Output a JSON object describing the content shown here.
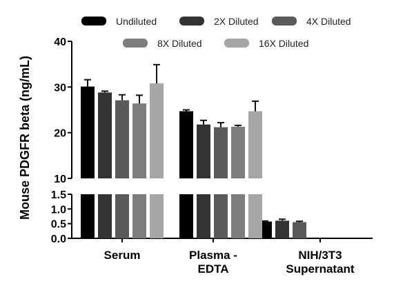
{
  "chart_data": {
    "type": "bar",
    "ylabel": "Mouse PDGFR beta (ng/mL)",
    "xlabel": "",
    "categories": [
      "Serum",
      "Plasma - EDTA",
      "NIH/3T3 Supernatant"
    ],
    "category_lines": [
      [
        "Serum"
      ],
      [
        "Plasma -",
        "EDTA"
      ],
      [
        "NIH/3T3",
        "Supernatant"
      ]
    ],
    "y_axis": {
      "broken": true,
      "lower_segment": {
        "range": [
          0,
          1.5
        ],
        "ticks": [
          "0.0",
          "0.5",
          "1.0",
          "1.5"
        ]
      },
      "upper_segment": {
        "range": [
          10,
          40
        ],
        "ticks": [
          "10",
          "20",
          "30",
          "40"
        ]
      }
    },
    "legend_position": "top",
    "series": [
      {
        "name": "Undiluted",
        "color": "#000000",
        "values": [
          30.1,
          24.7,
          0.57
        ],
        "errors": [
          1.5,
          0.3,
          0.02
        ]
      },
      {
        "name": "2X Diluted",
        "color": "#333333",
        "values": [
          28.8,
          21.8,
          0.6
        ],
        "errors": [
          0.3,
          0.9,
          0.05
        ]
      },
      {
        "name": "4X Diluted",
        "color": "#5a5a5a",
        "values": [
          27.1,
          21.2,
          0.55
        ],
        "errors": [
          1.2,
          1.0,
          0.03
        ]
      },
      {
        "name": "8X Diluted",
        "color": "#7d7d7d",
        "values": [
          26.4,
          21.3,
          null
        ],
        "errors": [
          1.8,
          0.3,
          null
        ]
      },
      {
        "name": "16X Diluted",
        "color": "#a6a6a6",
        "values": [
          30.8,
          24.7,
          null
        ],
        "errors": [
          4.1,
          2.2,
          null
        ]
      }
    ]
  }
}
